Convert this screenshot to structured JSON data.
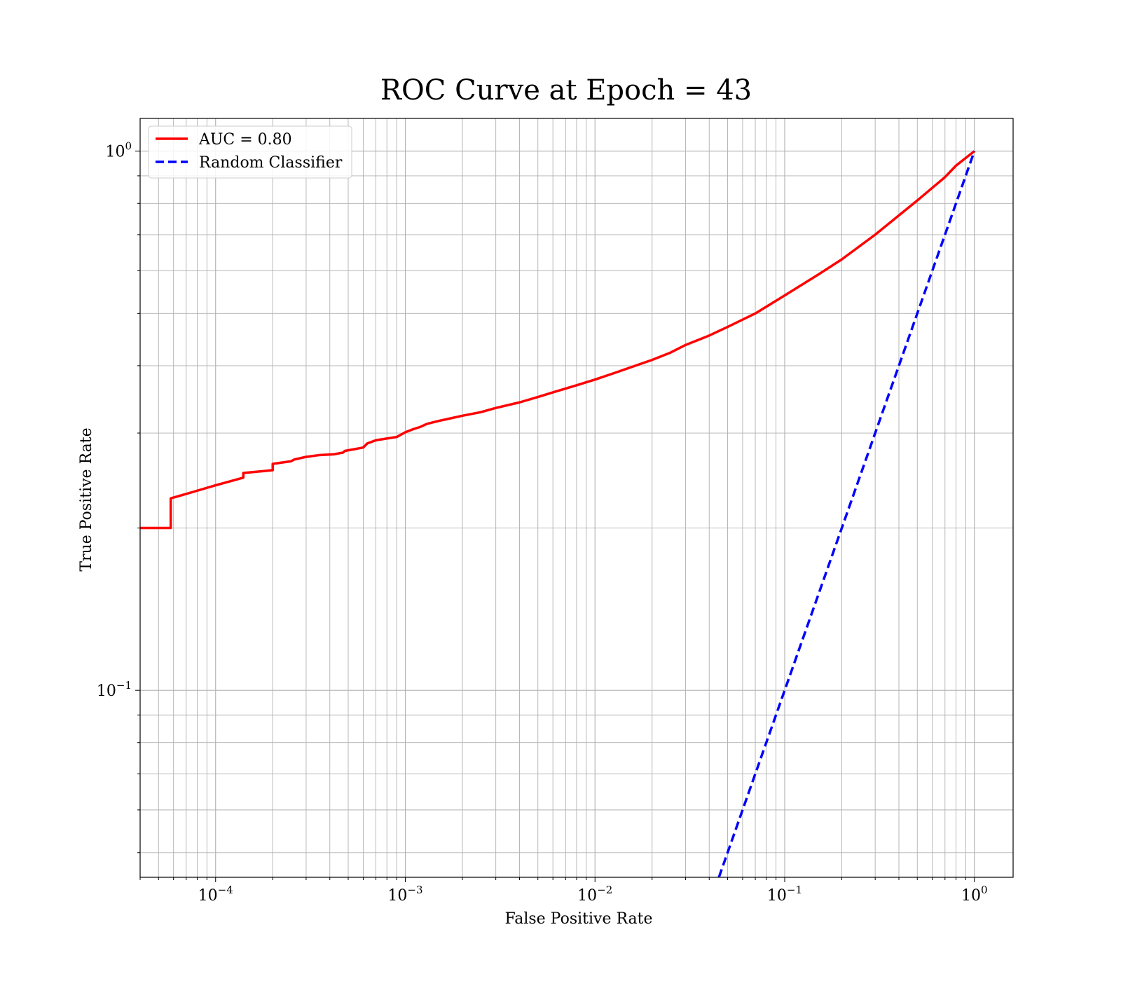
{
  "chart_data": {
    "type": "line",
    "title": "ROC Curve at Epoch = 43",
    "xlabel": "False Positive Rate",
    "ylabel": "True Positive Rate",
    "xscale": "log",
    "yscale": "log",
    "xlim": [
      4e-05,
      1.6
    ],
    "ylim": [
      0.045,
      1.15
    ],
    "x_ticks": [
      {
        "value": 0.0001,
        "base": "10",
        "exp": "−4"
      },
      {
        "value": 0.001,
        "base": "10",
        "exp": "−3"
      },
      {
        "value": 0.01,
        "base": "10",
        "exp": "−2"
      },
      {
        "value": 0.1,
        "base": "10",
        "exp": "−1"
      },
      {
        "value": 1,
        "base": "10",
        "exp": "0"
      }
    ],
    "y_ticks": [
      {
        "value": 0.1,
        "base": "10",
        "exp": "−1"
      },
      {
        "value": 1,
        "base": "10",
        "exp": "0"
      }
    ],
    "grid": true,
    "legend_position": "top-left",
    "series": [
      {
        "name": "AUC = 0.80",
        "color": "#ff0000",
        "style": "solid",
        "x": [
          4e-05,
          5.8e-05,
          5.8e-05,
          7.5e-05,
          0.0001,
          0.00014,
          0.00014,
          0.0002,
          0.0002,
          0.00025,
          0.00026,
          0.0003,
          0.00035,
          0.00042,
          0.00047,
          0.00048,
          0.0006,
          0.00063,
          0.0007,
          0.0009,
          0.001,
          0.0011,
          0.0012,
          0.0013,
          0.0015,
          0.0017,
          0.002,
          0.0025,
          0.003,
          0.004,
          0.005,
          0.006,
          0.008,
          0.01,
          0.013,
          0.017,
          0.02,
          0.025,
          0.03,
          0.04,
          0.05,
          0.07,
          0.1,
          0.15,
          0.2,
          0.3,
          0.4,
          0.5,
          0.6,
          0.7,
          0.8,
          1.0
        ],
        "y": [
          0.2,
          0.2,
          0.227,
          0.233,
          0.24,
          0.248,
          0.253,
          0.256,
          0.263,
          0.266,
          0.268,
          0.271,
          0.273,
          0.274,
          0.276,
          0.278,
          0.282,
          0.287,
          0.291,
          0.295,
          0.301,
          0.305,
          0.308,
          0.312,
          0.316,
          0.319,
          0.323,
          0.328,
          0.334,
          0.342,
          0.35,
          0.357,
          0.368,
          0.377,
          0.389,
          0.402,
          0.41,
          0.423,
          0.437,
          0.455,
          0.472,
          0.5,
          0.54,
          0.59,
          0.63,
          0.7,
          0.76,
          0.81,
          0.855,
          0.895,
          0.94,
          1.0
        ]
      },
      {
        "name": "Random Classifier",
        "color": "#0000ff",
        "style": "dashed",
        "x": [
          0.045,
          1.0
        ],
        "y": [
          0.045,
          1.0
        ]
      }
    ]
  }
}
